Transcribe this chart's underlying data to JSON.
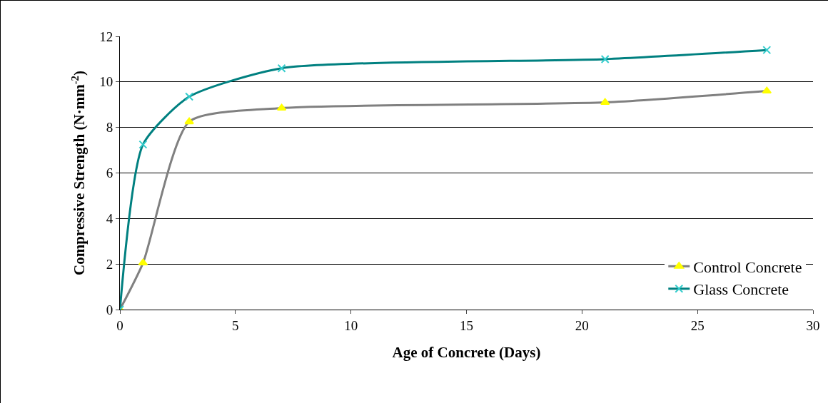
{
  "chart_data": {
    "type": "line",
    "xlabel": "Age of Concrete (Days)",
    "ylabel": "Compressive Strength (N·mm$^{-2}$)",
    "xlim": [
      0,
      30
    ],
    "xticks": [
      0,
      5,
      10,
      15,
      20,
      25,
      30
    ],
    "ylim": [
      0,
      12
    ],
    "yticks": [
      0,
      2,
      4,
      6,
      8,
      10,
      12
    ],
    "grid": "y",
    "legend": "bottom right",
    "series": [
      {
        "name": "Control Concrete",
        "color": "#808080",
        "marker": "triangle",
        "colors": [
          "#ffff00",
          "#ffff00",
          "#ffff00",
          "#ffff00",
          "#ffff00",
          "#ffff00"
        ],
        "x": [
          0,
          1,
          3,
          7,
          21,
          28
        ],
        "values": [
          0,
          2.05,
          8.25,
          8.85,
          9.1,
          9.6
        ]
      },
      {
        "name": "Glass Concrete",
        "color": "#008080",
        "marker": "cross",
        "colors": [
          "#33cccc",
          "#33cccc",
          "#33cccc",
          "#33cccc",
          "#33cccc",
          "#33cccc"
        ],
        "x": [
          0,
          1,
          3,
          7,
          21,
          28
        ],
        "values": [
          0,
          7.25,
          9.35,
          10.6,
          11.0,
          11.4
        ]
      }
    ]
  }
}
